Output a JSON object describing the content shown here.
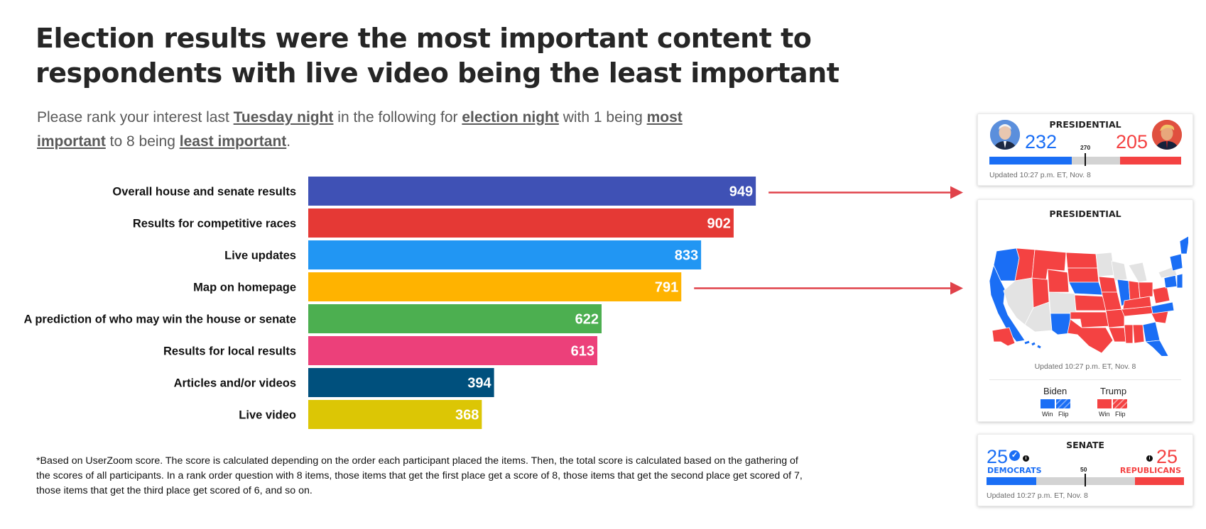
{
  "title": "Election results were the most important content to respondents with live video being the least important",
  "subtitle": {
    "p1": "Please rank your interest last ",
    "u1": "Tuesday night",
    "p2": " in the following for ",
    "u2": "election night",
    "p3": " with 1 being ",
    "u3": "most important",
    "p4": " to 8 being ",
    "u4": "least important",
    "p5": "."
  },
  "chart_data": {
    "type": "bar",
    "orientation": "horizontal",
    "categories": [
      "Overall house and senate results",
      "Results for competitive races",
      "Live updates",
      "Map on homepage",
      "A prediction of who may win the house or senate",
      "Results for local results",
      "Articles and/or videos",
      "Live video"
    ],
    "values": [
      949,
      902,
      833,
      791,
      622,
      613,
      394,
      368
    ],
    "colors": [
      "#3f51b5",
      "#e53935",
      "#2196f3",
      "#ffb300",
      "#4caf50",
      "#ec407a",
      "#00507d",
      "#dcc605"
    ],
    "arrow_color": "#e0424a",
    "arrows_from_categories": [
      "Overall house and senate results",
      "Map on homepage"
    ]
  },
  "footnote": "*Based on UserZoom score. The score is calculated depending on the order each participant placed the items. Then, the total score is calculated based on the gathering of the scores of all participants. In a rank order question with 8 items, those items that get the first place get a score of 8, those items that get the second place get scored of 7, those items that get the third place get scored of 6, and so on.",
  "widgets": {
    "presidential_bar": {
      "title": "PRESIDENTIAL",
      "dem_votes": "232",
      "rep_votes": "205",
      "threshold": "270",
      "dem_share": 0.431,
      "rep_share": 0.3175,
      "threshold_share": 0.5,
      "updated": "Updated 10:27 p.m. ET, Nov. 8"
    },
    "presidential_map": {
      "title": "PRESIDENTIAL",
      "updated": "Updated 10:27 p.m. ET, Nov. 8",
      "legend": {
        "dem_name": "Biden",
        "rep_name": "Trump",
        "win_label": "Win",
        "flip_label": "Flip"
      }
    },
    "senate": {
      "title": "SENATE",
      "dem_seats": "25",
      "rep_seats": "25",
      "dem_label": "DEMOCRATS",
      "rep_label": "REPUBLICANS",
      "threshold": "50",
      "dem_share": 0.25,
      "rep_share": 0.25,
      "threshold_share": 0.5,
      "updated": "Updated 10:27 p.m. ET, Nov. 8"
    },
    "colors": {
      "dem": "#1a6ef5",
      "rep": "#f44242",
      "neutral": "#d3d3d3",
      "undecided": "#e3e3e3"
    },
    "icons": [
      "check-icon",
      "info-icon",
      "biden-avatar",
      "trump-avatar"
    ]
  }
}
